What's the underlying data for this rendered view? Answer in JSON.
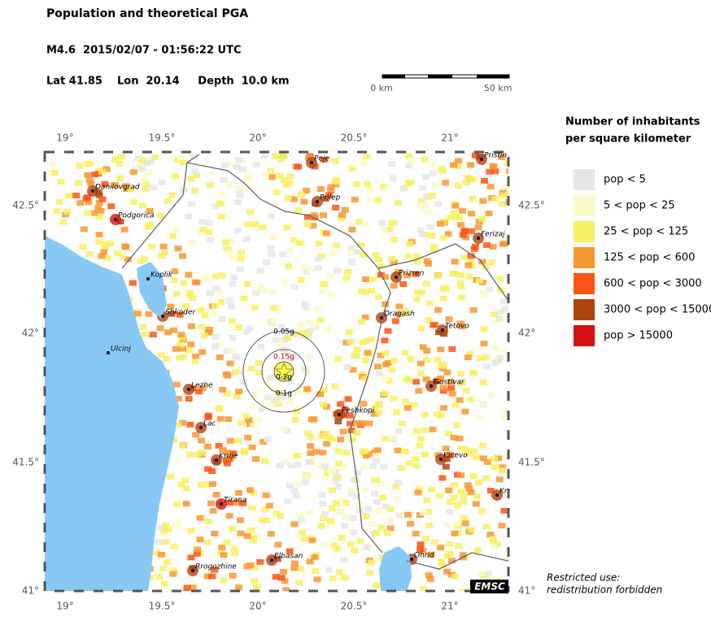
{
  "header": {
    "title": "Population and theoretical PGA",
    "event": "M4.6  2015/02/07 - 01:56:22 UTC",
    "location": "Lat 41.85    Lon  20.14     Depth  10.0 km"
  },
  "scale_bar": {
    "start": "0 km",
    "end": "50 km"
  },
  "map": {
    "lon_ticks": [
      "19°",
      "19.5°",
      "20°",
      "20.5°",
      "21°"
    ],
    "lat_ticks": [
      "42.5°",
      "42°",
      "41.5°",
      "41°"
    ],
    "cities": [
      "Danilovgrad",
      "Podgorica",
      "Koplik",
      "Shkoder",
      "Ulcinj",
      "Lezhe",
      "Lac",
      "Kruje",
      "Tirana",
      "Rrogozhine",
      "Elbasan",
      "Peje",
      "Prilep",
      "Prizren",
      "Dragash",
      "Tetovo",
      "Gostivar",
      "Peshkopi",
      "Kicevo",
      "Ohrid",
      "Ferizaj",
      "Pristin",
      "Kr"
    ],
    "pga_rings": [
      "0.05g",
      "0.15g",
      "0.2g",
      "0.1g"
    ],
    "logo": "EMSC"
  },
  "legend": {
    "title": [
      "Number of inhabitants",
      "per square kilometer"
    ],
    "items": [
      {
        "label": "pop < 5",
        "color": "#e6e6e6"
      },
      {
        "label": "5 < pop < 25",
        "color": "#fafac8"
      },
      {
        "label": "25 < pop < 125",
        "color": "#f8f060"
      },
      {
        "label": "125 < pop < 600",
        "color": "#f89830"
      },
      {
        "label": "600 < pop < 3000",
        "color": "#fc5414"
      },
      {
        "label": "3000 < pop < 15000",
        "color": "#b04410"
      },
      {
        "label": "pop > 15000",
        "color": "#d41010"
      }
    ]
  },
  "note": [
    "Restricted use:",
    "redistribution forbidden"
  ]
}
